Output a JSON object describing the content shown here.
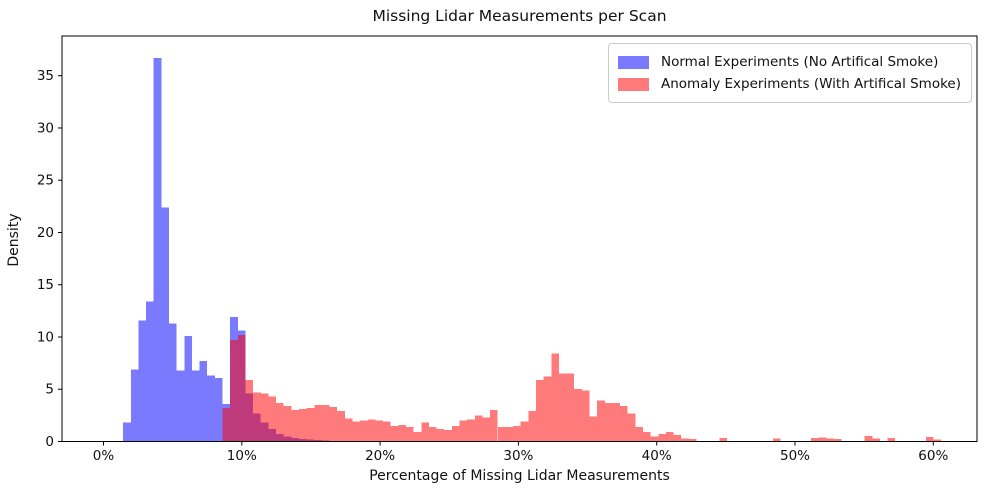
{
  "chart_data": {
    "type": "histogram",
    "title": "Missing Lidar Measurements per Scan",
    "xlabel": "Percentage of Missing Lidar Measurements",
    "ylabel": "Density",
    "xlim": [
      -3,
      63.16
    ],
    "ylim": [
      0,
      38.8
    ],
    "grid": false,
    "legend_position": "upper right",
    "bin_width_pct": 0.5527,
    "x_ticks": [
      {
        "value": 0,
        "label": "0%"
      },
      {
        "value": 10,
        "label": "10%"
      },
      {
        "value": 20,
        "label": "20%"
      },
      {
        "value": 30,
        "label": "30%"
      },
      {
        "value": 40,
        "label": "40%"
      },
      {
        "value": 50,
        "label": "50%"
      },
      {
        "value": 60,
        "label": "60%"
      }
    ],
    "y_ticks": [
      {
        "value": 0,
        "label": "0"
      },
      {
        "value": 5,
        "label": "5"
      },
      {
        "value": 10,
        "label": "10"
      },
      {
        "value": 15,
        "label": "15"
      },
      {
        "value": 20,
        "label": "20"
      },
      {
        "value": 25,
        "label": "25"
      },
      {
        "value": 30,
        "label": "30"
      },
      {
        "value": 35,
        "label": "35"
      }
    ],
    "axis_color": "#000000",
    "text_color": "#111111",
    "series": [
      {
        "key": "normal",
        "name": "Normal Experiments (No Artifical Smoke)",
        "color": "#0000ff",
        "alpha": 0.52,
        "start_pct": 1.42,
        "heights": [
          1.8,
          6.9,
          11.6,
          13.4,
          36.7,
          22.4,
          11.3,
          6.8,
          10.1,
          6.8,
          7.7,
          6.3,
          6.1,
          3.6,
          11.9,
          10.6,
          4.6,
          2.7,
          1.8,
          1.2,
          0.7,
          0.5,
          0.35,
          0.25,
          0.2,
          0.15,
          0.1
        ]
      },
      {
        "key": "anomaly",
        "name": "Anomaly Experiments (With Artifical Smoke)",
        "color": "#ff0000",
        "alpha": 0.52,
        "start_pct": 8.61,
        "heights": [
          3.2,
          9.7,
          10.2,
          5.9,
          4.7,
          4.6,
          4.3,
          3.7,
          3.4,
          3.0,
          3.1,
          3.2,
          3.5,
          3.5,
          3.3,
          2.9,
          2.2,
          1.9,
          2.0,
          2.1,
          2.0,
          1.9,
          1.5,
          1.6,
          1.4,
          0.9,
          1.8,
          1.4,
          1.2,
          1.1,
          1.5,
          2.0,
          2.1,
          2.5,
          2.3,
          3.0,
          1.4,
          1.4,
          1.5,
          1.9,
          2.9,
          5.9,
          6.2,
          8.4,
          6.5,
          6.5,
          5.0,
          4.9,
          2.4,
          3.9,
          3.7,
          3.7,
          3.4,
          2.7,
          1.4,
          0.9,
          0.5,
          0.7,
          0.9,
          0.6,
          0.3,
          0.25,
          0,
          0,
          0,
          0.35,
          0,
          0,
          0,
          0,
          0,
          0,
          0.28,
          0,
          0,
          0,
          0,
          0.35,
          0.38,
          0.3,
          0.25,
          0,
          0,
          0,
          0.55,
          0.3,
          0,
          0.35,
          0,
          0,
          0,
          0,
          0.45,
          0.2
        ]
      }
    ]
  }
}
